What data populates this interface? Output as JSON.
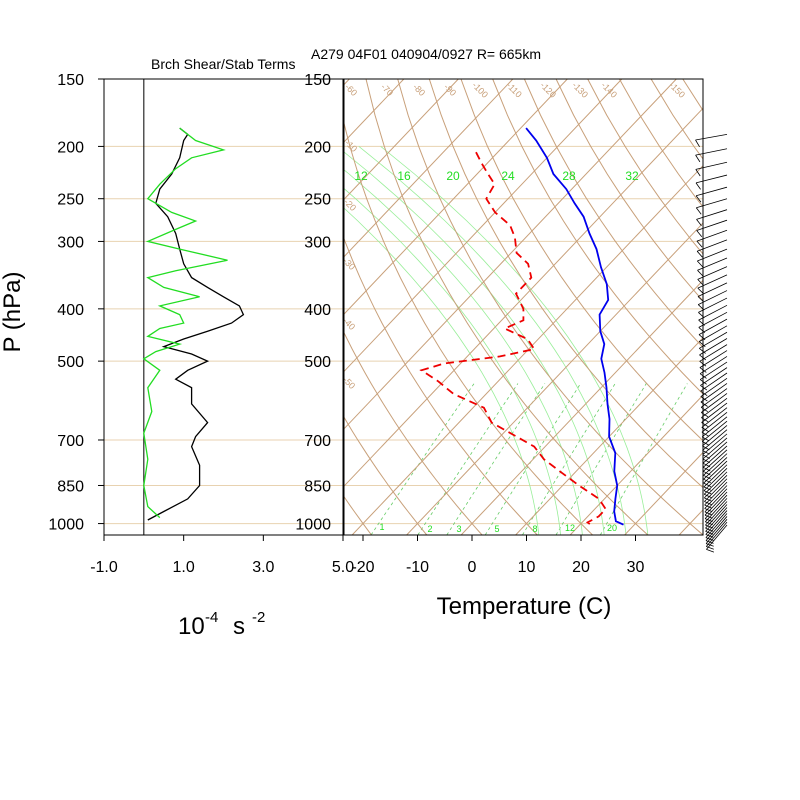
{
  "figure": {
    "header": "A279 04F01 040904/0927 R= 665km",
    "left_panel_title": "Brch Shear/Stab Terms",
    "y_axis_label": "P (hPa)",
    "left_x_unit_base": "10",
    "left_x_unit_exp": "-4",
    "left_x_unit_s": "s",
    "left_x_unit_exp2": "-2",
    "right_x_label": "Temperature (C)"
  },
  "chart_data": [
    {
      "type": "line",
      "title": "Brch Shear/Stab Terms",
      "ylabel": "P (hPa)",
      "y_scale": "log",
      "y_reversed": true,
      "ylim": [
        1050,
        150
      ],
      "xlim": [
        -1.0,
        5.0
      ],
      "x_ticks": [
        -1.0,
        1.0,
        3.0,
        5.0
      ],
      "x_tick_labels": [
        "-1.0",
        "1.0",
        "3.0",
        "5.0"
      ],
      "y_ticks": [
        150,
        200,
        250,
        300,
        400,
        500,
        700,
        850,
        1000
      ],
      "y_tick_labels": [
        "150",
        "200",
        "250",
        "300",
        "400",
        "500",
        "700",
        "850",
        "1000"
      ],
      "series": [
        {
          "color": "#000000",
          "points": [
            [
              0.9,
              185
            ],
            [
              1.1,
              190
            ],
            [
              1.0,
              195
            ],
            [
              0.9,
              210
            ],
            [
              0.7,
              225
            ],
            [
              0.4,
              240
            ],
            [
              0.3,
              255
            ],
            [
              0.6,
              270
            ],
            [
              0.8,
              290
            ],
            [
              0.9,
              310
            ],
            [
              1.0,
              330
            ],
            [
              1.2,
              350
            ],
            [
              1.6,
              365
            ],
            [
              2.0,
              380
            ],
            [
              2.4,
              395
            ],
            [
              2.5,
              410
            ],
            [
              2.2,
              425
            ],
            [
              1.6,
              440
            ],
            [
              1.0,
              455
            ],
            [
              0.5,
              470
            ],
            [
              1.2,
              485
            ],
            [
              1.6,
              500
            ],
            [
              1.1,
              520
            ],
            [
              0.8,
              540
            ],
            [
              1.2,
              560
            ],
            [
              1.2,
              600
            ],
            [
              1.6,
              650
            ],
            [
              1.3,
              690
            ],
            [
              1.2,
              720
            ],
            [
              1.4,
              780
            ],
            [
              1.4,
              850
            ],
            [
              1.1,
              900
            ],
            [
              0.5,
              950
            ],
            [
              0.1,
              985
            ]
          ]
        },
        {
          "color": "#22dd22",
          "points": [
            [
              0.9,
              185
            ],
            [
              1.3,
              195
            ],
            [
              2.0,
              203
            ],
            [
              1.2,
              210
            ],
            [
              0.8,
              220
            ],
            [
              0.4,
              235
            ],
            [
              0.1,
              250
            ],
            [
              0.7,
              265
            ],
            [
              1.3,
              275
            ],
            [
              0.8,
              285
            ],
            [
              0.1,
              300
            ],
            [
              0.9,
              310
            ],
            [
              2.1,
              325
            ],
            [
              0.8,
              340
            ],
            [
              0.1,
              350
            ],
            [
              0.5,
              365
            ],
            [
              1.4,
              380
            ],
            [
              0.4,
              395
            ],
            [
              0.9,
              410
            ],
            [
              1.0,
              425
            ],
            [
              0.4,
              435
            ],
            [
              0.1,
              450
            ],
            [
              0.9,
              465
            ],
            [
              0.3,
              480
            ],
            [
              0.0,
              495
            ],
            [
              0.4,
              520
            ],
            [
              0.1,
              560
            ],
            [
              0.2,
              620
            ],
            [
              0.0,
              680
            ],
            [
              0.1,
              760
            ],
            [
              0.0,
              850
            ],
            [
              0.1,
              930
            ],
            [
              0.4,
              975
            ]
          ]
        }
      ]
    },
    {
      "type": "line",
      "subtype": "skew-t",
      "xlabel": "Temperature (C)",
      "ylabel": "P (hPa)",
      "y_scale": "log",
      "y_reversed": true,
      "ylim": [
        1050,
        150
      ],
      "x_ticks": [
        -20,
        -10,
        0,
        10,
        20,
        30
      ],
      "x_tick_labels": [
        "-20",
        "-10",
        "0",
        "10",
        "20",
        "30"
      ],
      "y_ticks": [
        150,
        200,
        250,
        300,
        400,
        500,
        700,
        850,
        1000
      ],
      "y_tick_labels": [
        "150",
        "200",
        "250",
        "300",
        "400",
        "500",
        "700",
        "850",
        "1000"
      ],
      "mixing_ratio_labels": [
        "12",
        "16",
        "20",
        "24",
        "28",
        "32"
      ],
      "moist_adiabat_labels": [
        "1",
        "2",
        "3",
        "5",
        "8",
        "12",
        "20"
      ],
      "isotherm_labels": [
        "-10",
        "-20",
        "-30",
        "-40",
        "-50",
        "-60",
        "-70",
        "-80",
        "-90",
        "-100",
        "-110",
        "-120",
        "-130",
        "-140",
        "-150"
      ],
      "series": [
        {
          "name": "",
          "color": "#0000ee",
          "style": "solid",
          "points": [
            [
              -59,
              185
            ],
            [
              -55,
              195
            ],
            [
              -50,
              210
            ],
            [
              -46,
              225
            ],
            [
              -41,
              240
            ],
            [
              -37,
              255
            ],
            [
              -33,
              270
            ],
            [
              -29,
              290
            ],
            [
              -25,
              310
            ],
            [
              -21,
              335
            ],
            [
              -17,
              360
            ],
            [
              -14,
              385
            ],
            [
              -13,
              410
            ],
            [
              -10,
              440
            ],
            [
              -7,
              465
            ],
            [
              -5,
              495
            ],
            [
              -2,
              525
            ],
            [
              1,
              560
            ],
            [
              4,
              600
            ],
            [
              7,
              640
            ],
            [
              10,
              690
            ],
            [
              14,
              740
            ],
            [
              17,
              800
            ],
            [
              20,
              850
            ],
            [
              22,
              900
            ],
            [
              24,
              950
            ],
            [
              26,
              990
            ],
            [
              28,
              1005
            ]
          ]
        },
        {
          "name": "",
          "color": "#ee0000",
          "style": "dashed",
          "points": [
            [
              -64,
              205
            ],
            [
              -61,
              215
            ],
            [
              -58,
              225
            ],
            [
              -55,
              235
            ],
            [
              -54,
              250
            ],
            [
              -50,
              265
            ],
            [
              -45,
              280
            ],
            [
              -42,
              295
            ],
            [
              -39,
              315
            ],
            [
              -35,
              330
            ],
            [
              -32,
              350
            ],
            [
              -32,
              375
            ],
            [
              -28,
              400
            ],
            [
              -26,
              420
            ],
            [
              -28,
              435
            ],
            [
              -22,
              455
            ],
            [
              -19,
              475
            ],
            [
              -24,
              490
            ],
            [
              -33,
              505
            ],
            [
              -36,
              520
            ],
            [
              -31,
              545
            ],
            [
              -26,
              575
            ],
            [
              -18,
              610
            ],
            [
              -14,
              650
            ],
            [
              -7,
              690
            ],
            [
              -2,
              720
            ],
            [
              2,
              760
            ],
            [
              7,
              800
            ],
            [
              13,
              850
            ],
            [
              19,
              900
            ],
            [
              22,
              940
            ],
            [
              22,
              970
            ],
            [
              21,
              995
            ],
            [
              22,
              1005
            ]
          ]
        }
      ],
      "wind_barbs": [
        {
          "p": 200,
          "dir": 280,
          "spd": 40
        },
        {
          "p": 250,
          "dir": 285,
          "spd": 30
        },
        {
          "p": 300,
          "dir": 300,
          "spd": 25
        },
        {
          "p": 400,
          "dir": 330,
          "spd": 20
        },
        {
          "p": 500,
          "dir": 340,
          "spd": 15
        },
        {
          "p": 700,
          "dir": 345,
          "spd": 15
        },
        {
          "p": 850,
          "dir": 350,
          "spd": 15
        },
        {
          "p": 1000,
          "dir": 355,
          "spd": 10
        }
      ]
    }
  ]
}
